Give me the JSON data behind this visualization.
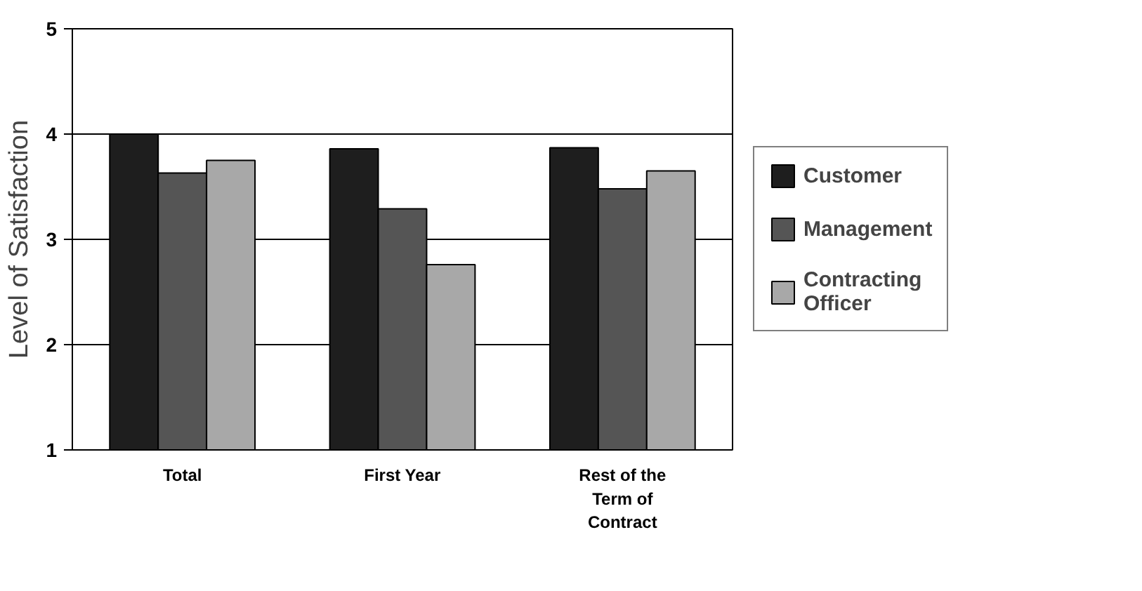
{
  "chart_data": {
    "type": "bar",
    "ylabel": "Level of Satisfaction",
    "categories": [
      "Total",
      "First Year",
      "Rest of the Term of Contract"
    ],
    "series": [
      {
        "name": "Customer",
        "color": "#1e1e1e",
        "values": [
          4.0,
          3.86,
          3.87
        ]
      },
      {
        "name": "Management",
        "color": "#555555",
        "values": [
          3.63,
          3.29,
          3.48
        ]
      },
      {
        "name": "Contracting Officer",
        "color": "#a8a8a8",
        "values": [
          3.75,
          2.76,
          3.65
        ]
      }
    ],
    "ylim": [
      1,
      5
    ],
    "yticks": [
      1,
      2,
      3,
      4,
      5
    ],
    "grid": "y",
    "legend": "right"
  }
}
